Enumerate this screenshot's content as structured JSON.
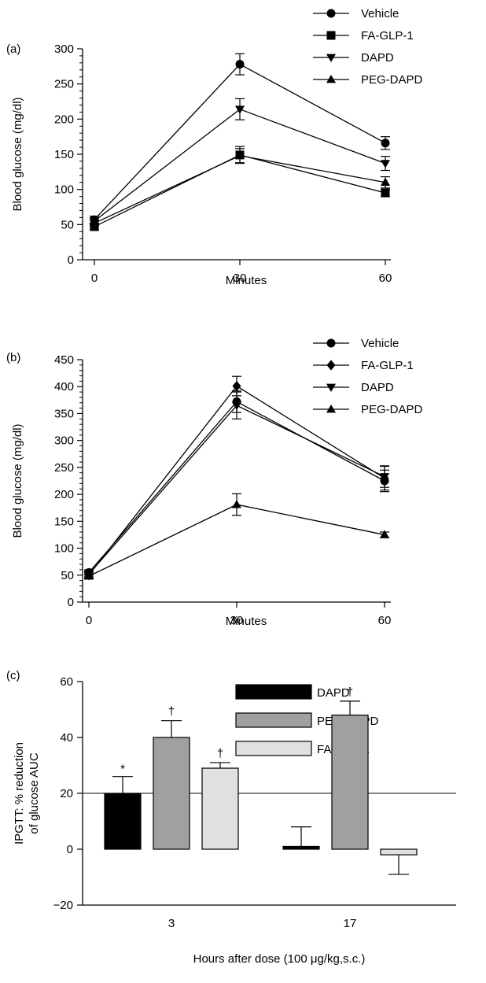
{
  "chart_data": [
    {
      "type": "line",
      "panel_label": "(a)",
      "xlabel": "Minutes",
      "ylabel": "Blood glucose (mg/dl)",
      "x": [
        0,
        30,
        60
      ],
      "xticks": [
        "0",
        "30",
        "60"
      ],
      "ylim": [
        0,
        300
      ],
      "yticks": [
        "0",
        "50",
        "100",
        "150",
        "200",
        "250",
        "300"
      ],
      "series": [
        {
          "name": "Vehicle",
          "marker": "circle",
          "values": [
            57,
            278,
            166
          ],
          "errors": [
            5,
            15,
            9
          ]
        },
        {
          "name": "FA-GLP-1",
          "marker": "square",
          "values": [
            47,
            149,
            95
          ],
          "errors": [
            4,
            12,
            5
          ]
        },
        {
          "name": "DAPD",
          "marker": "triangle-down",
          "values": [
            55,
            214,
            137
          ],
          "errors": [
            5,
            15,
            10
          ]
        },
        {
          "name": "PEG-DAPD",
          "marker": "triangle-up",
          "values": [
            52,
            148,
            110
          ],
          "errors": [
            4,
            10,
            8
          ]
        }
      ]
    },
    {
      "type": "line",
      "panel_label": "(b)",
      "xlabel": "Minutes",
      "ylabel": "Blood glucose (mg/dl)",
      "x": [
        0,
        30,
        60
      ],
      "xticks": [
        "0",
        "30",
        "60"
      ],
      "ylim": [
        0,
        450
      ],
      "yticks": [
        "0",
        "50",
        "100",
        "150",
        "200",
        "250",
        "300",
        "350",
        "400",
        "450"
      ],
      "series": [
        {
          "name": "Vehicle",
          "marker": "circle",
          "values": [
            55,
            372,
            225
          ],
          "errors": [
            5,
            20,
            20
          ]
        },
        {
          "name": "FA-GLP-1",
          "marker": "diamond",
          "values": [
            50,
            401,
            230
          ],
          "errors": [
            5,
            18,
            22
          ]
        },
        {
          "name": "DAPD",
          "marker": "triangle-down",
          "values": [
            52,
            365,
            233
          ],
          "errors": [
            5,
            25,
            20
          ]
        },
        {
          "name": "PEG-DAPD",
          "marker": "triangle-up",
          "values": [
            48,
            181,
            125
          ],
          "errors": [
            4,
            20,
            5
          ]
        }
      ]
    },
    {
      "type": "bar",
      "panel_label": "(c)",
      "xlabel": "Hours after dose (100 μg/kg,s.c.)",
      "ylabel_line1": "IPGTT: % reduction",
      "ylabel_line2": "of glucose AUC",
      "categories": [
        "3",
        "17"
      ],
      "ylim": [
        -20,
        60
      ],
      "yticks": [
        "−20",
        "0",
        "20",
        "40",
        "60"
      ],
      "series": [
        {
          "name": "DAPD",
          "color": "#000000",
          "values": [
            20,
            1
          ],
          "errors": [
            6,
            7
          ],
          "annotations": [
            "*",
            ""
          ]
        },
        {
          "name": "PEG-DAPD",
          "color": "#a0a0a0",
          "values": [
            40,
            48
          ],
          "errors": [
            6,
            5
          ],
          "annotations": [
            "†",
            "†"
          ]
        },
        {
          "name": "FA-GLP-1",
          "color": "#e0e0e0",
          "values": [
            29,
            -2
          ],
          "errors": [
            2,
            7
          ],
          "annotations": [
            "†",
            ""
          ]
        }
      ]
    }
  ]
}
